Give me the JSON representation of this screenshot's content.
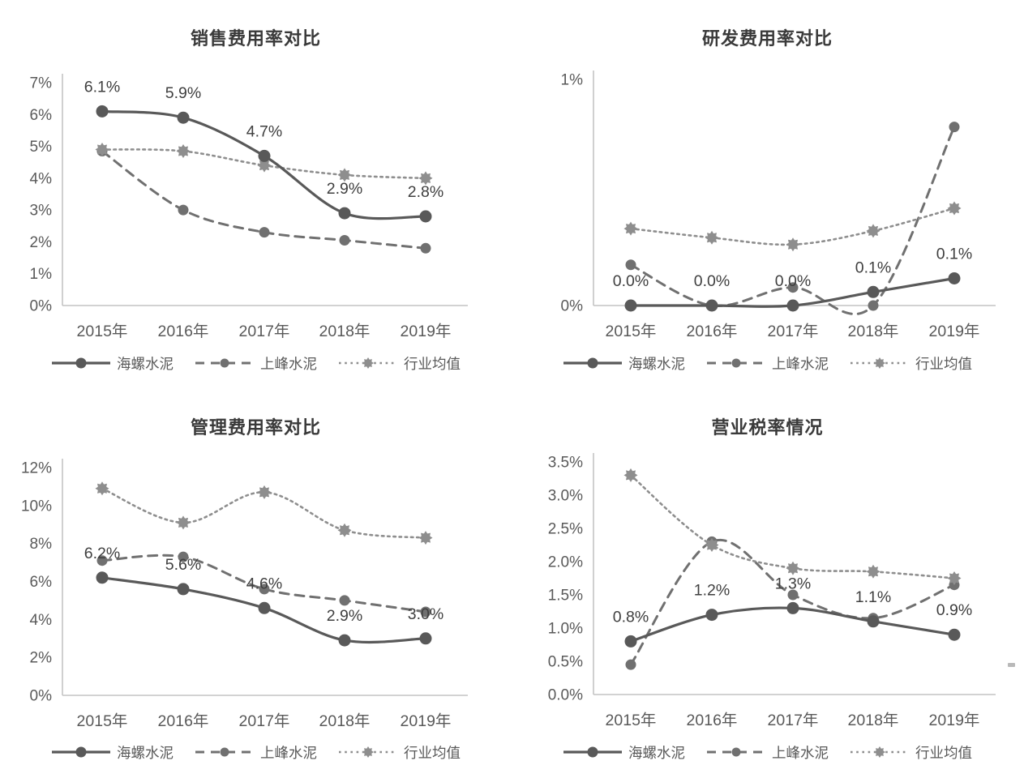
{
  "colors": {
    "background": "#ffffff",
    "title": "#3a3a3a",
    "tick_label": "#595959",
    "data_label": "#3f3f3f",
    "axis_line": "#c4c4c4",
    "series_solid": "#595959",
    "series_dashed": "#707070",
    "series_dotted": "#8e8e8e"
  },
  "chart_data": [
    {
      "type": "line",
      "title": "销售费用率对比",
      "categories": [
        "2015年",
        "2016年",
        "2017年",
        "2018年",
        "2019年"
      ],
      "y_ticks": [
        "0%",
        "1%",
        "2%",
        "3%",
        "4%",
        "5%",
        "6%",
        "7%"
      ],
      "ylim": [
        0,
        7
      ],
      "grid": false,
      "legend_position": "bottom",
      "series": [
        {
          "name": "海螺水泥",
          "line": "solid",
          "marker": "circle",
          "color": "#595959",
          "values": [
            6.1,
            5.9,
            4.7,
            2.9,
            2.8
          ],
          "data_labels": [
            "6.1%",
            "5.9%",
            "4.7%",
            "2.9%",
            "2.8%"
          ]
        },
        {
          "name": "上峰水泥",
          "line": "dashed",
          "marker": "circle",
          "color": "#707070",
          "values": [
            4.85,
            3.0,
            2.3,
            2.05,
            1.8
          ]
        },
        {
          "name": "行业均值",
          "line": "dotted",
          "marker": "star",
          "color": "#8e8e8e",
          "values": [
            4.9,
            4.85,
            4.4,
            4.1,
            4.0
          ]
        }
      ]
    },
    {
      "type": "line",
      "title": "研发费用率对比",
      "categories": [
        "2015年",
        "2016年",
        "2017年",
        "2018年",
        "2019年"
      ],
      "y_ticks": [
        "0%",
        "1%"
      ],
      "ylim": [
        0,
        1
      ],
      "grid": false,
      "legend_position": "bottom",
      "series": [
        {
          "name": "海螺水泥",
          "line": "solid",
          "marker": "circle",
          "color": "#595959",
          "values": [
            0.0,
            0.0,
            0.0,
            0.06,
            0.12
          ],
          "data_labels": [
            "0.0%",
            "0.0%",
            "0.0%",
            "0.1%",
            "0.1%"
          ]
        },
        {
          "name": "上峰水泥",
          "line": "dashed",
          "marker": "circle",
          "color": "#707070",
          "values": [
            0.18,
            0.0,
            0.08,
            0.0,
            0.79
          ]
        },
        {
          "name": "行业均值",
          "line": "dotted",
          "marker": "star",
          "color": "#8e8e8e",
          "values": [
            0.34,
            0.3,
            0.27,
            0.33,
            0.43
          ]
        }
      ]
    },
    {
      "type": "line",
      "title": "管理费用率对比",
      "categories": [
        "2015年",
        "2016年",
        "2017年",
        "2018年",
        "2019年"
      ],
      "y_ticks": [
        "0%",
        "2%",
        "4%",
        "6%",
        "8%",
        "10%",
        "12%"
      ],
      "ylim": [
        0,
        12
      ],
      "grid": false,
      "legend_position": "bottom",
      "series": [
        {
          "name": "海螺水泥",
          "line": "solid",
          "marker": "circle",
          "color": "#595959",
          "values": [
            6.2,
            5.6,
            4.6,
            2.9,
            3.0
          ],
          "data_labels": [
            "6.2%",
            "5.6%",
            "4.6%",
            "2.9%",
            "3.0%"
          ]
        },
        {
          "name": "上峰水泥",
          "line": "dashed",
          "marker": "circle",
          "color": "#707070",
          "values": [
            7.1,
            7.3,
            5.6,
            5.0,
            4.4
          ]
        },
        {
          "name": "行业均值",
          "line": "dotted",
          "marker": "star",
          "color": "#8e8e8e",
          "values": [
            10.9,
            9.1,
            10.7,
            8.7,
            8.3
          ]
        }
      ]
    },
    {
      "type": "line",
      "title": "营业税率情况",
      "categories": [
        "2015年",
        "2016年",
        "2017年",
        "2018年",
        "2019年"
      ],
      "y_ticks": [
        "0.0%",
        "0.5%",
        "1.0%",
        "1.5%",
        "2.0%",
        "2.5%",
        "3.0%",
        "3.5%"
      ],
      "ylim": [
        0,
        3.5
      ],
      "grid": false,
      "legend_position": "bottom",
      "series": [
        {
          "name": "海螺水泥",
          "line": "solid",
          "marker": "circle",
          "color": "#595959",
          "values": [
            0.8,
            1.2,
            1.3,
            1.1,
            0.9
          ],
          "data_labels": [
            "0.8%",
            "1.2%",
            "1.3%",
            "1.1%",
            "0.9%"
          ]
        },
        {
          "name": "上峰水泥",
          "line": "dashed",
          "marker": "circle",
          "color": "#707070",
          "values": [
            0.45,
            2.3,
            1.5,
            1.15,
            1.65
          ]
        },
        {
          "name": "行业均值",
          "line": "dotted",
          "marker": "star",
          "color": "#8e8e8e",
          "values": [
            3.3,
            2.25,
            1.9,
            1.85,
            1.75
          ]
        }
      ]
    }
  ]
}
